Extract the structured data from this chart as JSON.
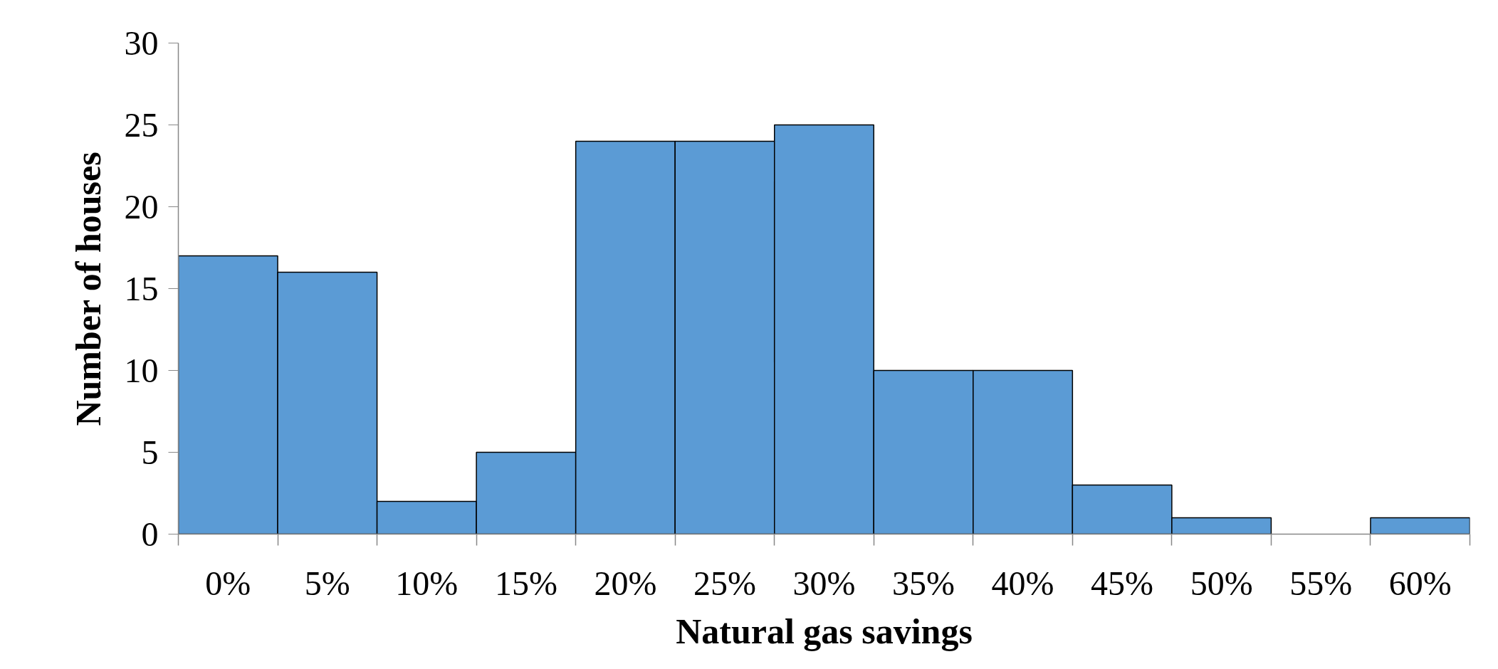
{
  "chart_data": {
    "type": "bar",
    "xlabel": "Natural gas savings",
    "ylabel": "Number of houses",
    "categories": [
      "0%",
      "5%",
      "10%",
      "15%",
      "20%",
      "25%",
      "30%",
      "35%",
      "40%",
      "45%",
      "50%",
      "55%",
      "60%"
    ],
    "values": [
      17,
      16,
      2,
      5,
      24,
      24,
      25,
      10,
      10,
      3,
      1,
      0,
      1
    ],
    "color": "#5b9bd5",
    "ylim": [
      0,
      30
    ],
    "yticks": [
      0,
      5,
      10,
      15,
      20,
      25,
      30
    ],
    "grid": false
  }
}
